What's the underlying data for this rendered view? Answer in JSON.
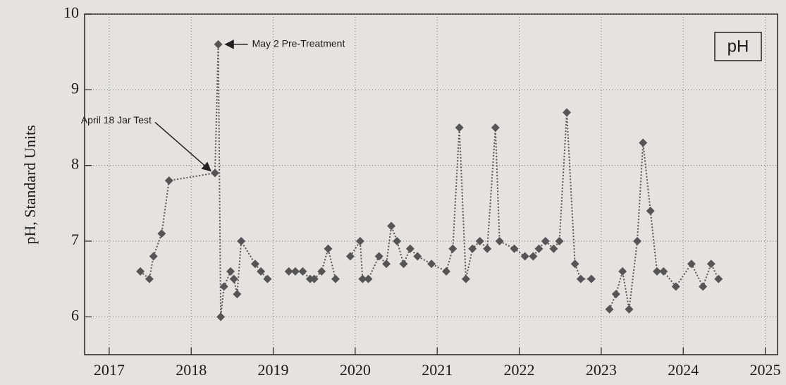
{
  "chart_data": {
    "type": "line",
    "y_label": "pH, Standard Units",
    "legend": "pH",
    "annotations": [
      "May 2 Pre-Treatment",
      "April 18 Jar Test"
    ],
    "color": "#555555",
    "grid": true,
    "xlim": [
      2016.7,
      2025.15
    ],
    "xticks": [
      2017,
      2018,
      2019,
      2020,
      2021,
      2022,
      2023,
      2024,
      2025
    ],
    "ylim": [
      5.5,
      10
    ],
    "yticks": [
      6,
      7,
      8,
      9,
      10
    ],
    "x": [
      2017.38,
      2017.49,
      2017.54,
      2017.64,
      2017.73,
      2018.29,
      2018.33,
      2018.36,
      2018.4,
      2018.48,
      2018.52,
      2018.56,
      2018.61,
      2018.78,
      2018.85,
      2018.93,
      null,
      2019.19,
      2019.27,
      2019.36,
      2019.45,
      2019.5,
      2019.59,
      2019.67,
      2019.76,
      null,
      2019.94,
      2020.06,
      2020.09,
      2020.16,
      2020.29,
      2020.38,
      2020.44,
      2020.51,
      2020.59,
      2020.67,
      2020.76,
      2020.93,
      2021.11,
      2021.19,
      2021.27,
      2021.35,
      2021.43,
      2021.52,
      2021.61,
      2021.71,
      2021.76,
      2021.94,
      2022.07,
      2022.17,
      2022.24,
      2022.32,
      2022.42,
      2022.49,
      2022.58,
      2022.68,
      2022.75,
      2022.88,
      null,
      2023.1,
      2023.18,
      2023.26,
      2023.34,
      2023.44,
      2023.51,
      2023.6,
      2023.68,
      2023.76,
      2023.91,
      2024.1,
      2024.24,
      2024.34,
      2024.43
    ],
    "values": [
      6.6,
      6.5,
      6.8,
      7.1,
      7.8,
      7.9,
      9.6,
      6.0,
      6.4,
      6.6,
      6.5,
      6.3,
      7.0,
      6.7,
      6.6,
      6.5,
      null,
      6.6,
      6.6,
      6.6,
      6.5,
      6.5,
      6.6,
      6.9,
      6.5,
      null,
      6.8,
      7.0,
      6.5,
      6.5,
      6.8,
      6.7,
      7.2,
      7.0,
      6.7,
      6.9,
      6.8,
      6.7,
      6.6,
      6.9,
      8.5,
      6.5,
      6.9,
      7.0,
      6.9,
      8.5,
      7.0,
      6.9,
      6.8,
      6.8,
      6.9,
      7.0,
      6.9,
      7.0,
      8.7,
      6.7,
      6.5,
      6.5,
      null,
      6.1,
      6.3,
      6.6,
      6.1,
      7.0,
      8.3,
      7.4,
      6.6,
      6.6,
      6.4,
      6.7,
      6.4,
      6.7,
      6.5
    ]
  }
}
